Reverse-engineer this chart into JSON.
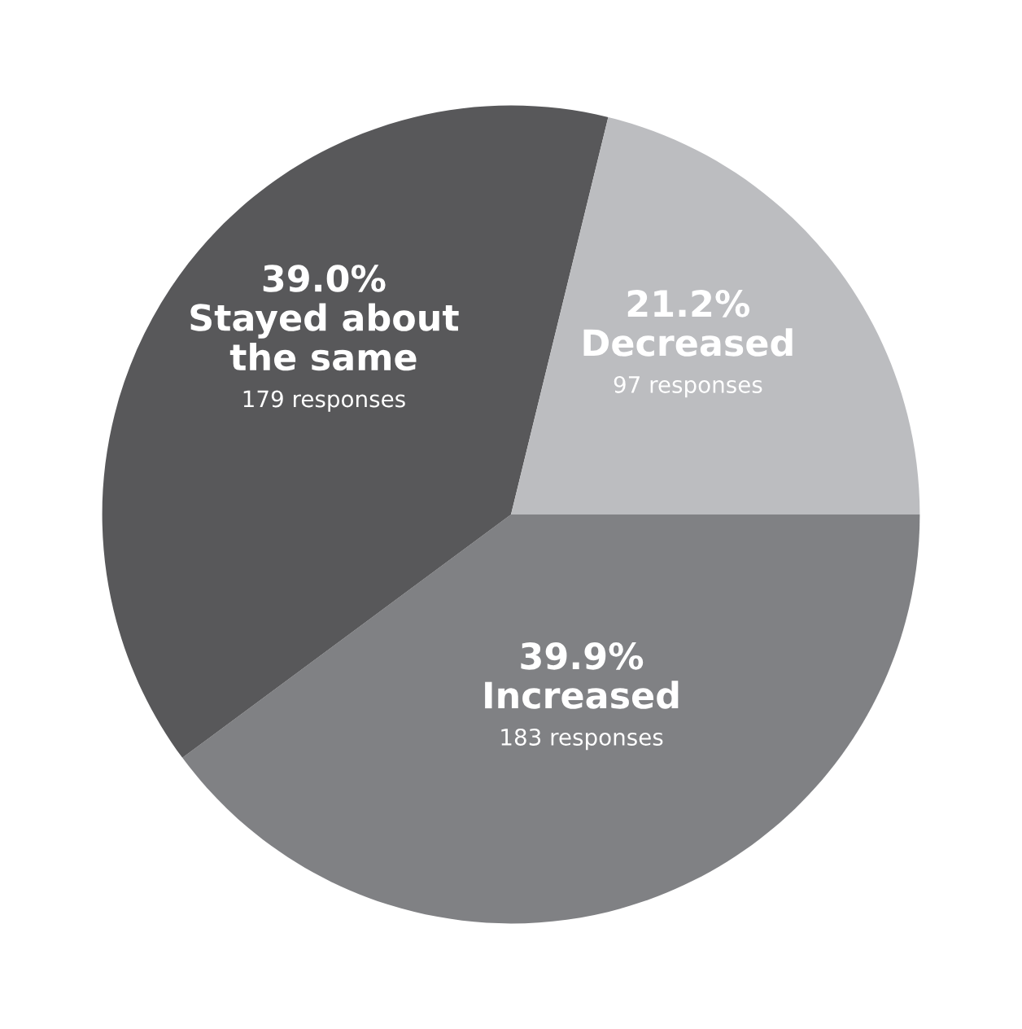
{
  "chart_data": {
    "type": "pie",
    "categories": [
      "Increased",
      "Stayed about\nthe same",
      "Decreased"
    ],
    "values": [
      39.9,
      39.0,
      21.2
    ],
    "colors": [
      "#808184",
      "#58585a",
      "#bcbdc0"
    ],
    "value_labels": [
      "39.9%",
      "39.0%",
      "21.2%"
    ],
    "annotations": [
      {
        "text": "183 responses",
        "x": "Increased"
      },
      {
        "text": "179 responses",
        "x": "Stayed about\nthe same"
      },
      {
        "text": "97 responses",
        "x": "Decreased"
      }
    ]
  }
}
